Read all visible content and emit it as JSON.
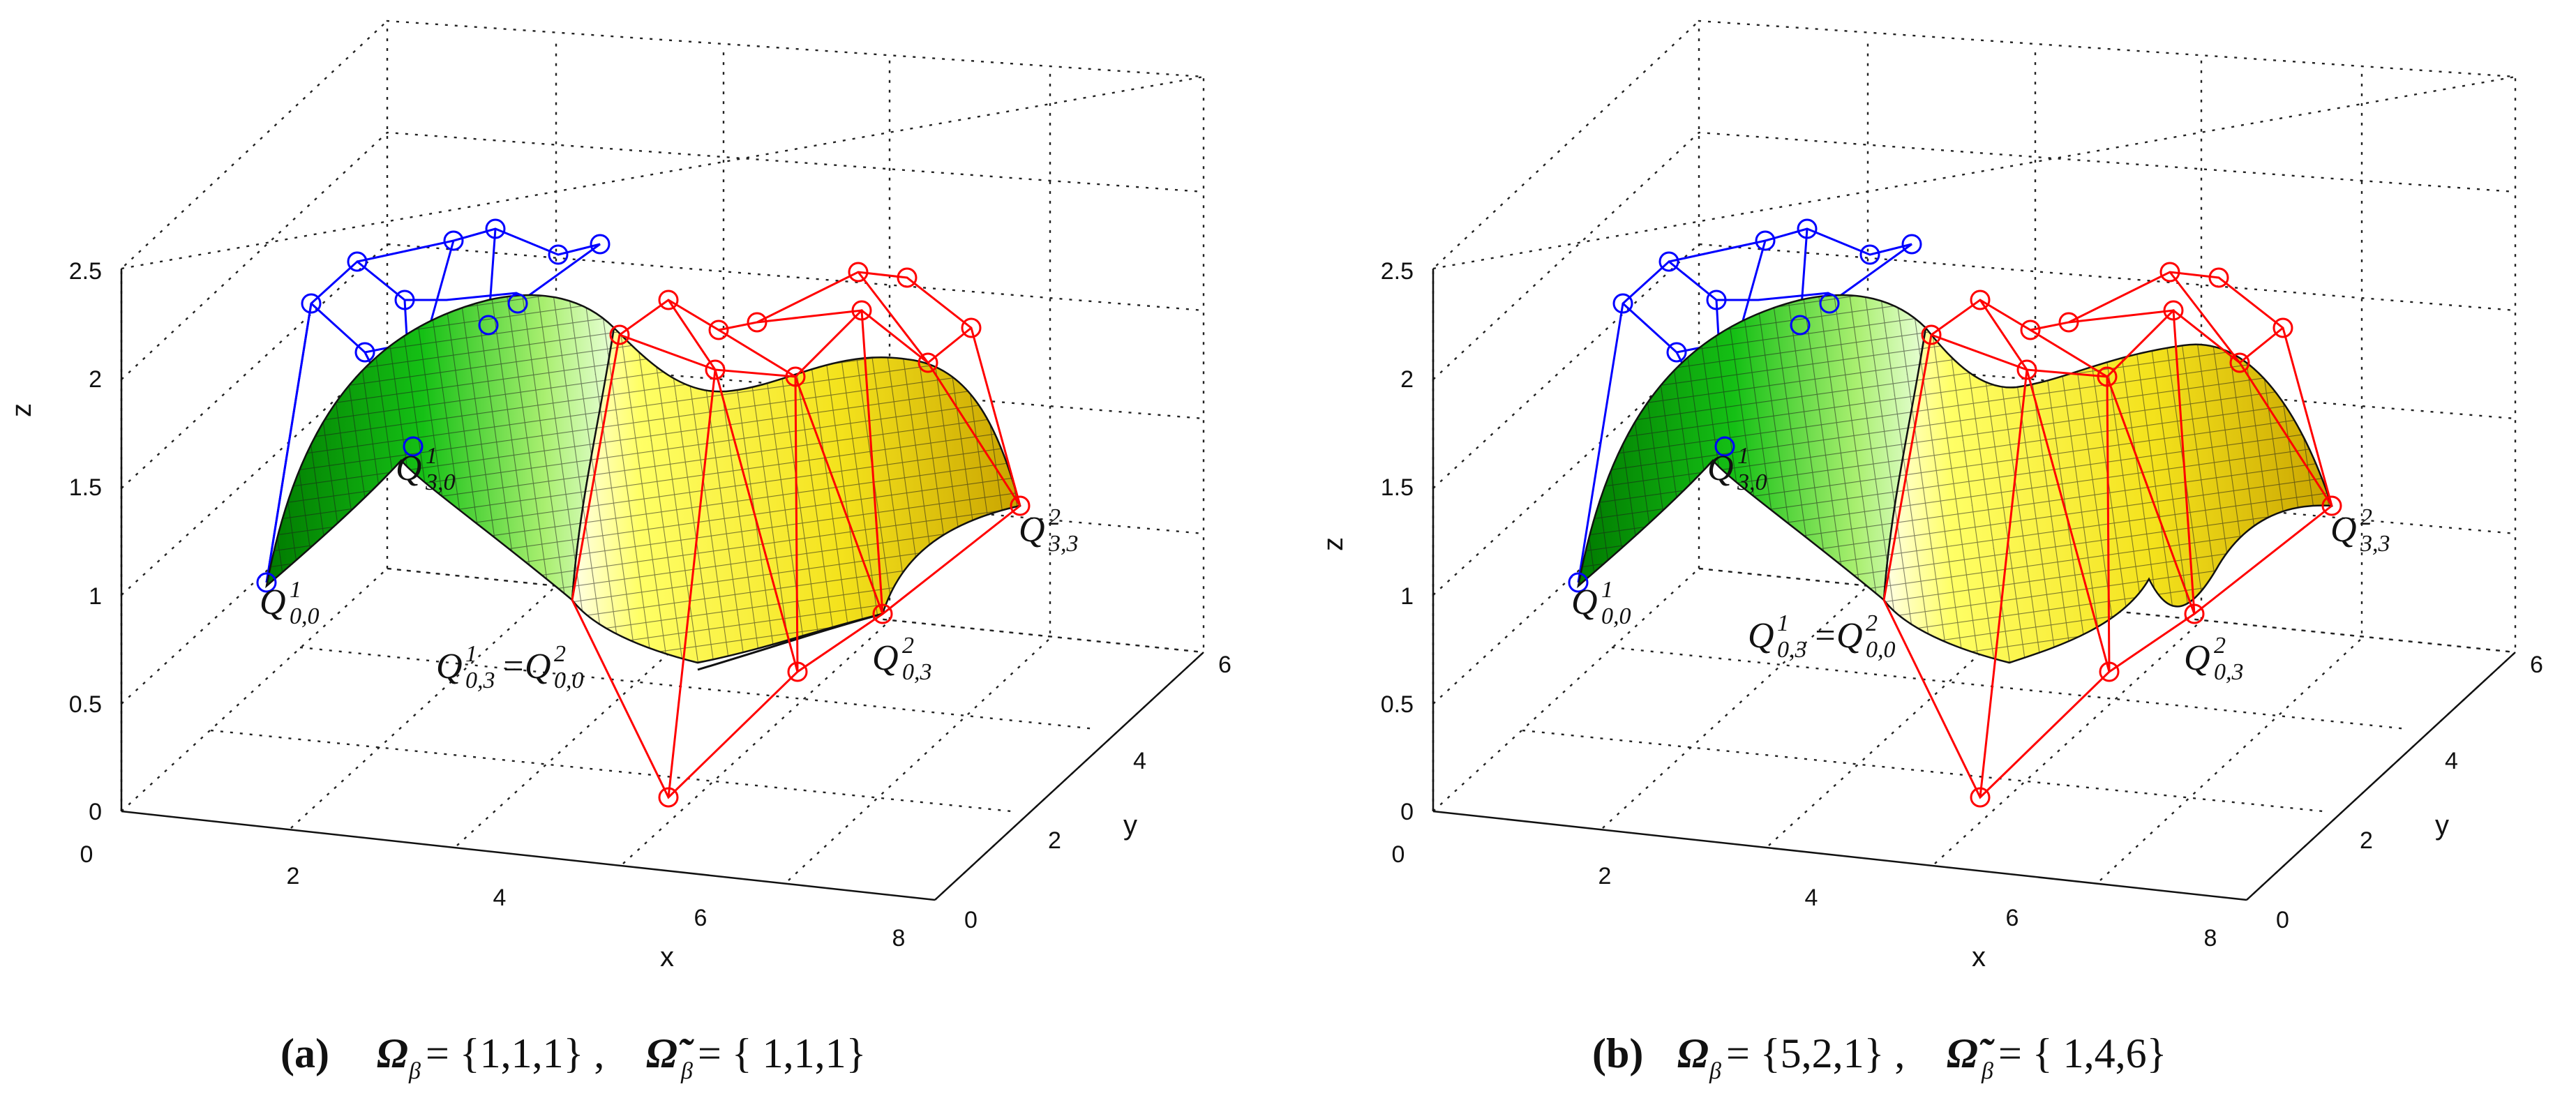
{
  "chart_data": [
    {
      "type": "surface3d",
      "panel_label": "(a)",
      "caption": "Ωβ = {1,1,1}, Ω̃β = {1,1,1}",
      "caption_lhs": "Ω",
      "caption_lhs_sub": "β",
      "caption_lhs_set": " = {1,1,1} ,",
      "caption_rhs": "Ω̃",
      "caption_rhs_sub": "β",
      "caption_rhs_set": " = { 1,1,1}",
      "xlabel": "x",
      "ylabel": "y",
      "zlabel": "z",
      "xlim": [
        0,
        8
      ],
      "ylim": [
        0,
        6
      ],
      "zlim": [
        0,
        2.5
      ],
      "xticks": [
        "0",
        "2",
        "4",
        "6",
        "8"
      ],
      "yticks": [
        "0",
        "2",
        "4",
        "6"
      ],
      "zticks": [
        "0",
        "0.5",
        "1",
        "1.5",
        "2",
        "2.5"
      ],
      "grid": true,
      "series": [
        {
          "name": "control net patch 1",
          "color": "#0000ff"
        },
        {
          "name": "control net patch 2",
          "color": "#ff0000"
        },
        {
          "name": "surface patch 1",
          "color": "#00c000"
        },
        {
          "name": "surface patch 2",
          "color": "#f0e020"
        }
      ],
      "annotations": [
        {
          "main": "Q",
          "sup": "1",
          "sub": "3,0"
        },
        {
          "main": "Q",
          "sup": "1",
          "sub": "0,0"
        },
        {
          "main": "Q",
          "sup": "1",
          "sub": "0,3",
          "eq": "=",
          "main2": "Q",
          "sup2": "2",
          "sub2": "0,0"
        },
        {
          "main": "Q",
          "sup": "2",
          "sub": "0,3"
        },
        {
          "main": "Q",
          "sup": "2",
          "sub": "3,3"
        }
      ]
    },
    {
      "type": "surface3d",
      "panel_label": "(b)",
      "caption": "Ωβ = {5,2,1}, Ω̃β = {1,4,6}",
      "caption_lhs": "Ω",
      "caption_lhs_sub": "β",
      "caption_lhs_set": " = {5,2,1} ,",
      "caption_rhs": "Ω̃",
      "caption_rhs_sub": "β",
      "caption_rhs_set": " = { 1,4,6}",
      "xlabel": "x",
      "ylabel": "y",
      "zlabel": "z",
      "xlim": [
        0,
        8
      ],
      "ylim": [
        0,
        6
      ],
      "zlim": [
        0,
        2.5
      ],
      "xticks": [
        "0",
        "2",
        "4",
        "6",
        "8"
      ],
      "yticks": [
        "0",
        "2",
        "4",
        "6"
      ],
      "zticks": [
        "0",
        "0.5",
        "1",
        "1.5",
        "2",
        "2.5"
      ],
      "grid": true,
      "series": [
        {
          "name": "control net patch 1",
          "color": "#0000ff"
        },
        {
          "name": "control net patch 2",
          "color": "#ff0000"
        },
        {
          "name": "surface patch 1",
          "color": "#00c000"
        },
        {
          "name": "surface patch 2",
          "color": "#f0e020"
        }
      ],
      "annotations": [
        {
          "main": "Q",
          "sup": "1",
          "sub": "3,0"
        },
        {
          "main": "Q",
          "sup": "1",
          "sub": "0,0"
        },
        {
          "main": "Q",
          "sup": "1",
          "sub": "0,3",
          "eq": "=",
          "main2": "Q",
          "sup2": "2",
          "sub2": "0,0"
        },
        {
          "main": "Q",
          "sup": "2",
          "sub": "0,3"
        },
        {
          "main": "Q",
          "sup": "2",
          "sub": "3,3"
        }
      ]
    }
  ]
}
